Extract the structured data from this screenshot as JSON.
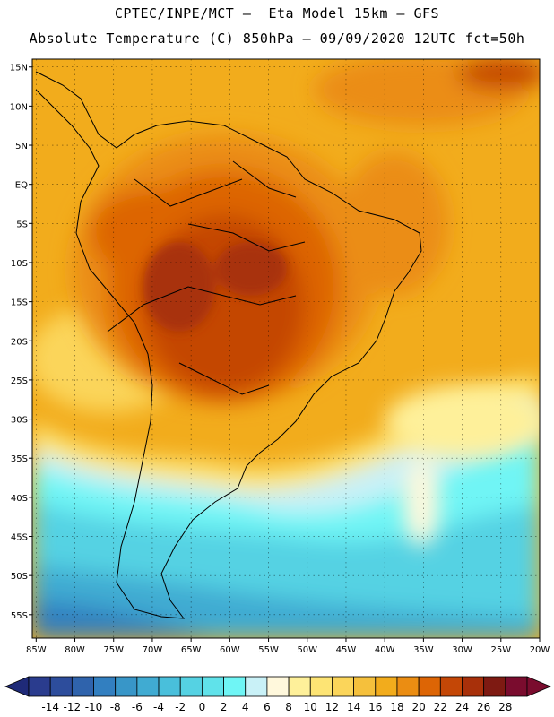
{
  "header": {
    "line1": "CPTEC/INPE/MCT –  Eta Model 15km – GFS",
    "line2": "Absolute Temperature (C) 850hPa – 09/09/2020 12UTC fct=50h"
  },
  "map": {
    "lat_labels": [
      "15N",
      "10N",
      "5N",
      "EQ",
      "5S",
      "10S",
      "15S",
      "20S",
      "25S",
      "30S",
      "35S",
      "40S",
      "45S",
      "50S",
      "55S"
    ],
    "lon_labels": [
      "85W",
      "80W",
      "75W",
      "70W",
      "65W",
      "60W",
      "55W",
      "50W",
      "45W",
      "40W",
      "35W",
      "30W",
      "25W",
      "20W"
    ],
    "lat_range": [
      16,
      -58
    ],
    "lon_range": [
      -85.5,
      -20
    ]
  },
  "colorbar": {
    "values": [
      "-14",
      "-12",
      "-10",
      "-8",
      "-6",
      "-4",
      "-2",
      "0",
      "2",
      "4",
      "6",
      "8",
      "10",
      "12",
      "14",
      "16",
      "18",
      "20",
      "22",
      "24",
      "26",
      "28"
    ],
    "colors": [
      "#2a3c8e",
      "#2d4d9c",
      "#2f63ac",
      "#327fc0",
      "#3896c8",
      "#40abd2",
      "#49bfdb",
      "#55d2e3",
      "#60e2ea",
      "#6ff5f5",
      "#c9f1f7",
      "#fff8dc",
      "#fef09a",
      "#fde474",
      "#fbd55a",
      "#f5c03c",
      "#f2ac1c",
      "#eb8d12",
      "#dd6505",
      "#c44706",
      "#a8300a",
      "#7e1a12",
      "#7a0c2e"
    ],
    "arrow_left_color": "#1f2a78",
    "arrow_right_color": "#7a0c2e"
  }
}
